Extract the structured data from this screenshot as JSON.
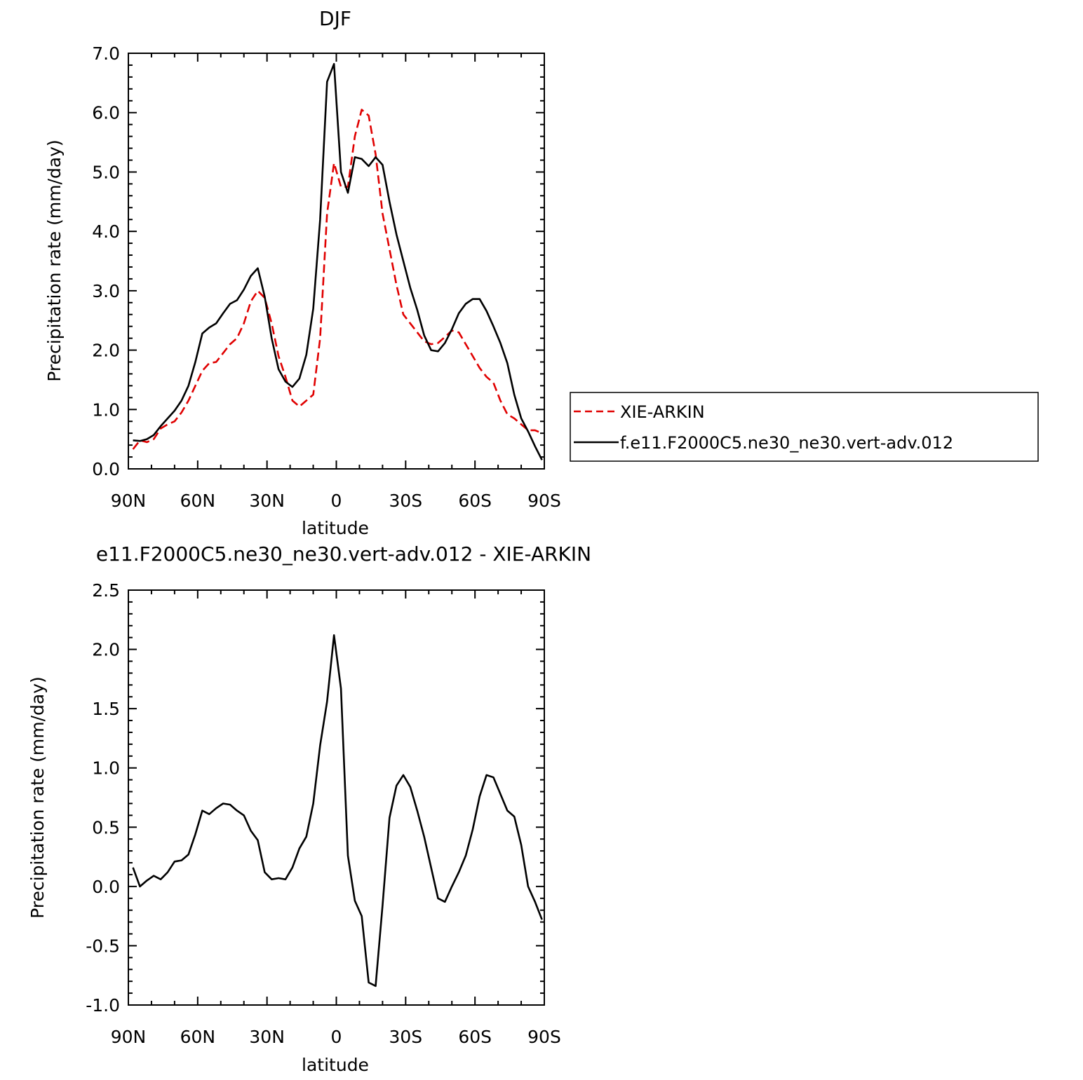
{
  "chart_data": [
    {
      "type": "line",
      "title": "DJF",
      "xlabel": "latitude",
      "ylabel": "Precipitation rate (mm/day)",
      "xlim": [
        90,
        -90
      ],
      "ylim": [
        0,
        7
      ],
      "xticks": [
        90,
        60,
        30,
        0,
        -30,
        -60,
        -90
      ],
      "xtick_labels": [
        "90N",
        "60N",
        "30N",
        "0",
        "30S",
        "60S",
        "90S"
      ],
      "yticks": [
        0,
        1,
        2,
        3,
        4,
        5,
        6,
        7
      ],
      "ytick_labels": [
        "0.0",
        "1.0",
        "2.0",
        "3.0",
        "4.0",
        "5.0",
        "6.0",
        "7.0"
      ],
      "grid": false,
      "legend_placement": "right",
      "series": [
        {
          "name": "XIE-ARKIN",
          "color": "#e00000",
          "dash": "dashed",
          "x": [
            88,
            85,
            82,
            79,
            76,
            73,
            70,
            67,
            64,
            61,
            58,
            55,
            52,
            49,
            46,
            43,
            40,
            37,
            34,
            31,
            28,
            25,
            22,
            19,
            16,
            13,
            10,
            7,
            4,
            1,
            -2,
            -5,
            -8,
            -11,
            -14,
            -17,
            -20,
            -23,
            -26,
            -29,
            -32,
            -35,
            -38,
            -41,
            -44,
            -47,
            -50,
            -53,
            -56,
            -59,
            -62,
            -65,
            -68,
            -71,
            -74,
            -77,
            -80,
            -83,
            -86,
            -89
          ],
          "y": [
            0.33,
            0.48,
            0.45,
            0.5,
            0.68,
            0.75,
            0.8,
            0.95,
            1.15,
            1.4,
            1.65,
            1.78,
            1.8,
            1.95,
            2.1,
            2.2,
            2.45,
            2.82,
            3.0,
            2.88,
            2.45,
            1.9,
            1.55,
            1.15,
            1.05,
            1.15,
            1.25,
            2.2,
            4.3,
            5.15,
            4.75,
            4.75,
            5.6,
            6.05,
            5.95,
            5.3,
            4.3,
            3.7,
            3.1,
            2.6,
            2.45,
            2.3,
            2.15,
            2.1,
            2.12,
            2.22,
            2.33,
            2.3,
            2.1,
            1.9,
            1.7,
            1.55,
            1.45,
            1.15,
            0.92,
            0.85,
            0.75,
            0.65,
            0.65,
            0.6
          ]
        },
        {
          "name": "f.e11.F2000C5.ne30_ne30.vert-adv.012",
          "color": "#000000",
          "dash": "solid",
          "x": [
            88,
            85,
            82,
            79,
            76,
            73,
            70,
            67,
            64,
            61,
            58,
            55,
            52,
            49,
            46,
            43,
            40,
            37,
            34,
            31,
            28,
            25,
            22,
            19,
            16,
            13,
            10,
            7,
            4,
            1,
            -2,
            -5,
            -8,
            -11,
            -14,
            -17,
            -20,
            -23,
            -26,
            -29,
            -32,
            -35,
            -38,
            -41,
            -44,
            -47,
            -50,
            -53,
            -56,
            -59,
            -62,
            -65,
            -68,
            -71,
            -74,
            -77,
            -80,
            -83,
            -86,
            -89
          ],
          "y": [
            0.48,
            0.47,
            0.5,
            0.57,
            0.72,
            0.85,
            0.98,
            1.15,
            1.4,
            1.8,
            2.28,
            2.38,
            2.45,
            2.62,
            2.78,
            2.84,
            3.02,
            3.25,
            3.38,
            2.9,
            2.2,
            1.68,
            1.47,
            1.38,
            1.52,
            1.92,
            2.7,
            4.2,
            6.52,
            6.82,
            5.0,
            4.65,
            5.25,
            5.22,
            5.1,
            5.25,
            5.12,
            4.5,
            3.95,
            3.5,
            3.05,
            2.68,
            2.25,
            2.0,
            1.98,
            2.12,
            2.35,
            2.62,
            2.78,
            2.86,
            2.86,
            2.66,
            2.4,
            2.12,
            1.78,
            1.25,
            0.85,
            0.63,
            0.38,
            0.15
          ]
        }
      ]
    },
    {
      "type": "line",
      "title": "e11.F2000C5.ne30_ne30.vert-adv.012 - XIE-ARKIN",
      "xlabel": "latitude",
      "ylabel": "Precipitation rate (mm/day)",
      "xlim": [
        90,
        -90
      ],
      "ylim": [
        -1.0,
        2.5
      ],
      "xticks": [
        90,
        60,
        30,
        0,
        -30,
        -60,
        -90
      ],
      "xtick_labels": [
        "90N",
        "60N",
        "30N",
        "0",
        "30S",
        "60S",
        "90S"
      ],
      "yticks": [
        -1.0,
        -0.5,
        0.0,
        0.5,
        1.0,
        1.5,
        2.0,
        2.5
      ],
      "ytick_labels": [
        "-1.0",
        "-0.5",
        "0.0",
        "0.5",
        "1.0",
        "1.5",
        "2.0",
        "2.5"
      ],
      "grid": false,
      "series": [
        {
          "color": "#000000",
          "dash": "solid",
          "x": [
            88,
            85,
            82,
            79,
            76,
            73,
            70,
            67,
            64,
            61,
            58,
            55,
            52,
            49,
            46,
            43,
            40,
            37,
            34,
            31,
            28,
            25,
            22,
            19,
            16,
            13,
            10,
            7,
            4,
            1,
            -2,
            -5,
            -8,
            -11,
            -14,
            -17,
            -20,
            -23,
            -26,
            -29,
            -32,
            -35,
            -38,
            -41,
            -44,
            -47,
            -50,
            -53,
            -56,
            -59,
            -62,
            -65,
            -68,
            -71,
            -74,
            -77,
            -80,
            -83,
            -86,
            -89
          ],
          "y": [
            0.16,
            0.0,
            0.05,
            0.09,
            0.06,
            0.12,
            0.21,
            0.22,
            0.27,
            0.44,
            0.64,
            0.61,
            0.66,
            0.7,
            0.69,
            0.64,
            0.6,
            0.47,
            0.39,
            0.12,
            0.06,
            0.07,
            0.06,
            0.16,
            0.32,
            0.42,
            0.7,
            1.19,
            1.56,
            2.12,
            1.67,
            0.26,
            -0.12,
            -0.25,
            -0.81,
            -0.84,
            -0.16,
            0.58,
            0.85,
            0.94,
            0.84,
            0.64,
            0.42,
            0.16,
            -0.1,
            -0.13,
            0.0,
            0.12,
            0.26,
            0.48,
            0.76,
            0.94,
            0.92,
            0.78,
            0.64,
            0.59,
            0.35,
            0.0,
            -0.13,
            -0.28
          ]
        }
      ]
    }
  ],
  "legend": {
    "items": [
      "XIE-ARKIN",
      "f.e11.F2000C5.ne30_ne30.vert-adv.012"
    ]
  }
}
